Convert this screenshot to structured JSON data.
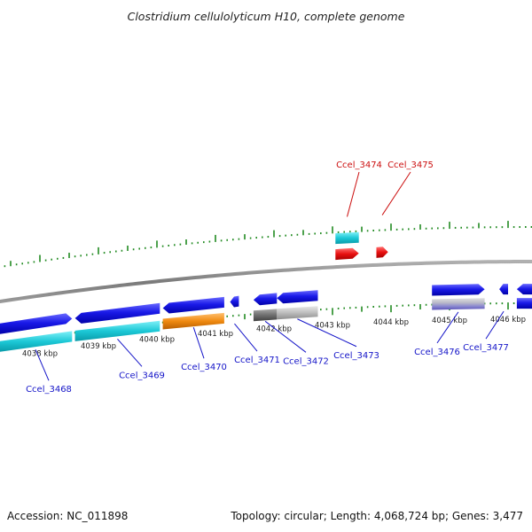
{
  "title": "Clostridium cellulolyticum H10, complete genome",
  "footer": {
    "accession": "Accession: NC_011898",
    "summary": "Topology: circular; Length: 4,068,724 bp; Genes: 3,477"
  },
  "colors": {
    "backbone": "#888888",
    "tick": "#228b22",
    "cds_forward": "#1414e0",
    "cds_reverse_track": "#1414e0",
    "rna_cyan": "#20c8d8",
    "rrna_red": "#e81010",
    "orange": "#f08a10",
    "grey": "#8a8a8a",
    "label_blue": "#1414c8",
    "label_red": "#cc1010"
  },
  "scale_labels": [
    {
      "kbp": 4038,
      "text": "4038 kbp"
    },
    {
      "kbp": 4039,
      "text": "4039 kbp"
    },
    {
      "kbp": 4040,
      "text": "4040 kbp"
    },
    {
      "kbp": 4041,
      "text": "4041 kbp"
    },
    {
      "kbp": 4042,
      "text": "4042 kbp"
    },
    {
      "kbp": 4043,
      "text": "4043 kbp"
    },
    {
      "kbp": 4044,
      "text": "4044 kbp"
    },
    {
      "kbp": 4045,
      "text": "4045 kbp"
    },
    {
      "kbp": 4046,
      "text": "4046 kbp"
    }
  ],
  "genes": [
    {
      "label": "Ccel_3468",
      "start": 4037.3,
      "end": 4038.55,
      "strand": "+",
      "type": "cds"
    },
    {
      "label": "Ccel_3469",
      "start": 4038.6,
      "end": 4040.05,
      "strand": "-",
      "type": "cds"
    },
    {
      "label": "Ccel_3470",
      "start": 4040.1,
      "end": 4041.15,
      "strand": "-",
      "type": "cds"
    },
    {
      "label": "Ccel_3471",
      "start": 4041.25,
      "end": 4041.4,
      "strand": "-",
      "type": "cds"
    },
    {
      "label": "Ccel_3472",
      "start": 4041.65,
      "end": 4042.05,
      "strand": "-",
      "type": "cds"
    },
    {
      "label": "Ccel_3473",
      "start": 4042.05,
      "end": 4042.75,
      "strand": "-",
      "type": "cds"
    },
    {
      "label": "Ccel_3474",
      "start": 4043.05,
      "end": 4043.45,
      "strand": "+",
      "type": "rna"
    },
    {
      "label": "Ccel_3475",
      "start": 4043.75,
      "end": 4043.95,
      "strand": "+",
      "type": "rrna"
    },
    {
      "label": "Ccel_3476",
      "start": 4044.7,
      "end": 4045.6,
      "strand": "+",
      "type": "cds"
    },
    {
      "label": "Ccel_3477",
      "start": 4045.85,
      "end": 4046.0,
      "strand": "-",
      "type": "cds"
    }
  ]
}
